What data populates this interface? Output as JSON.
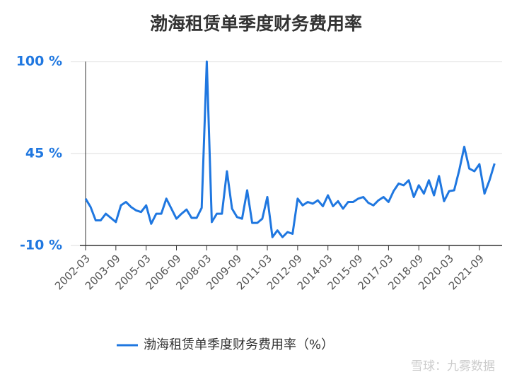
{
  "chart_data": {
    "type": "line",
    "title": "渤海租赁单季度财务费用率",
    "categories": [
      "2002-03",
      null,
      null,
      null,
      null,
      null,
      "2003-09",
      null,
      null,
      null,
      null,
      null,
      "2005-03",
      null,
      null,
      null,
      null,
      null,
      "2006-09",
      null,
      null,
      null,
      null,
      null,
      "2008-03",
      null,
      null,
      null,
      null,
      null,
      "2009-09",
      null,
      null,
      null,
      null,
      null,
      "2011-03",
      null,
      null,
      null,
      null,
      null,
      "2012-09",
      null,
      null,
      null,
      null,
      null,
      "2014-03",
      null,
      null,
      null,
      null,
      null,
      "2015-09",
      null,
      null,
      null,
      null,
      null,
      "2017-03",
      null,
      null,
      null,
      null,
      null,
      "2018-09",
      null,
      null,
      null,
      null,
      null,
      "2020-03",
      null,
      null,
      null,
      null,
      null,
      "2021-09",
      null,
      null,
      null
    ],
    "series": [
      {
        "name": "渤海租赁单季度财务费用率（%）",
        "color": "#1f77e0",
        "values": [
          18,
          13,
          5,
          5,
          9,
          6.5,
          4,
          14,
          16,
          13,
          11,
          10,
          14,
          3,
          9,
          9,
          18,
          12,
          6,
          9,
          11.5,
          6.5,
          6.5,
          12.5,
          100,
          4,
          9,
          9,
          34.4,
          12,
          7,
          6,
          23,
          3.5,
          3.5,
          6,
          19,
          -5,
          -1,
          -5,
          -2,
          -3,
          18,
          14,
          16,
          15,
          17,
          13.5,
          20,
          13.5,
          16.5,
          12,
          16,
          16,
          18,
          19,
          15.5,
          14,
          17,
          19,
          16,
          22.5,
          27,
          26,
          29,
          19,
          26,
          21,
          29,
          20,
          31.5,
          16.5,
          22.5,
          23,
          35,
          49,
          36,
          34.4,
          38.6,
          21,
          29,
          39
        ]
      }
    ],
    "ylim": [
      -10,
      100
    ],
    "yticks": [
      {
        "value": -10,
        "label": "-10 %"
      },
      {
        "value": 45,
        "label": "45 %"
      },
      {
        "value": 100,
        "label": "100 %"
      }
    ],
    "grid": true,
    "legend": "bottom",
    "watermark": "雪球：九雾数据"
  }
}
